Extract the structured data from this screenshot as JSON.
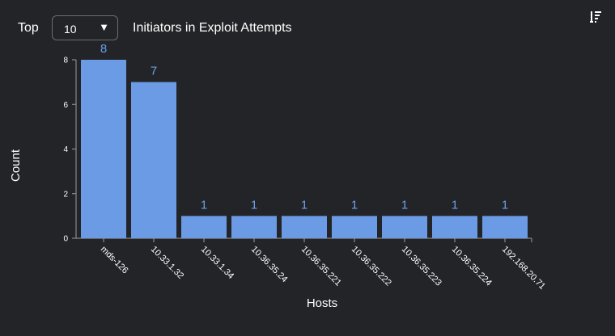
{
  "header": {
    "top_label": "Top",
    "top_select_value": "10",
    "title": "Initiators in Exploit Attempts",
    "sort_icon": "sort-descending-icon"
  },
  "colors": {
    "bar": "#6c9be6",
    "data_label": "#6d9eeb",
    "background": "#232427"
  },
  "chart_data": {
    "type": "bar",
    "categories": [
      "mds-126",
      "10.33.1.32",
      "10.33.1.34",
      "10.36.35.24",
      "10.36.35.221",
      "10.36.35.222",
      "10.36.35.223",
      "10.36.35.224",
      "192.168.20.71"
    ],
    "values": [
      8,
      7,
      1,
      1,
      1,
      1,
      1,
      1,
      1
    ],
    "xlabel": "Hosts",
    "ylabel": "Count",
    "ylim": [
      0,
      8
    ],
    "yticks": [
      0,
      2,
      4,
      6,
      8
    ],
    "grid": false,
    "data_labels": true
  }
}
